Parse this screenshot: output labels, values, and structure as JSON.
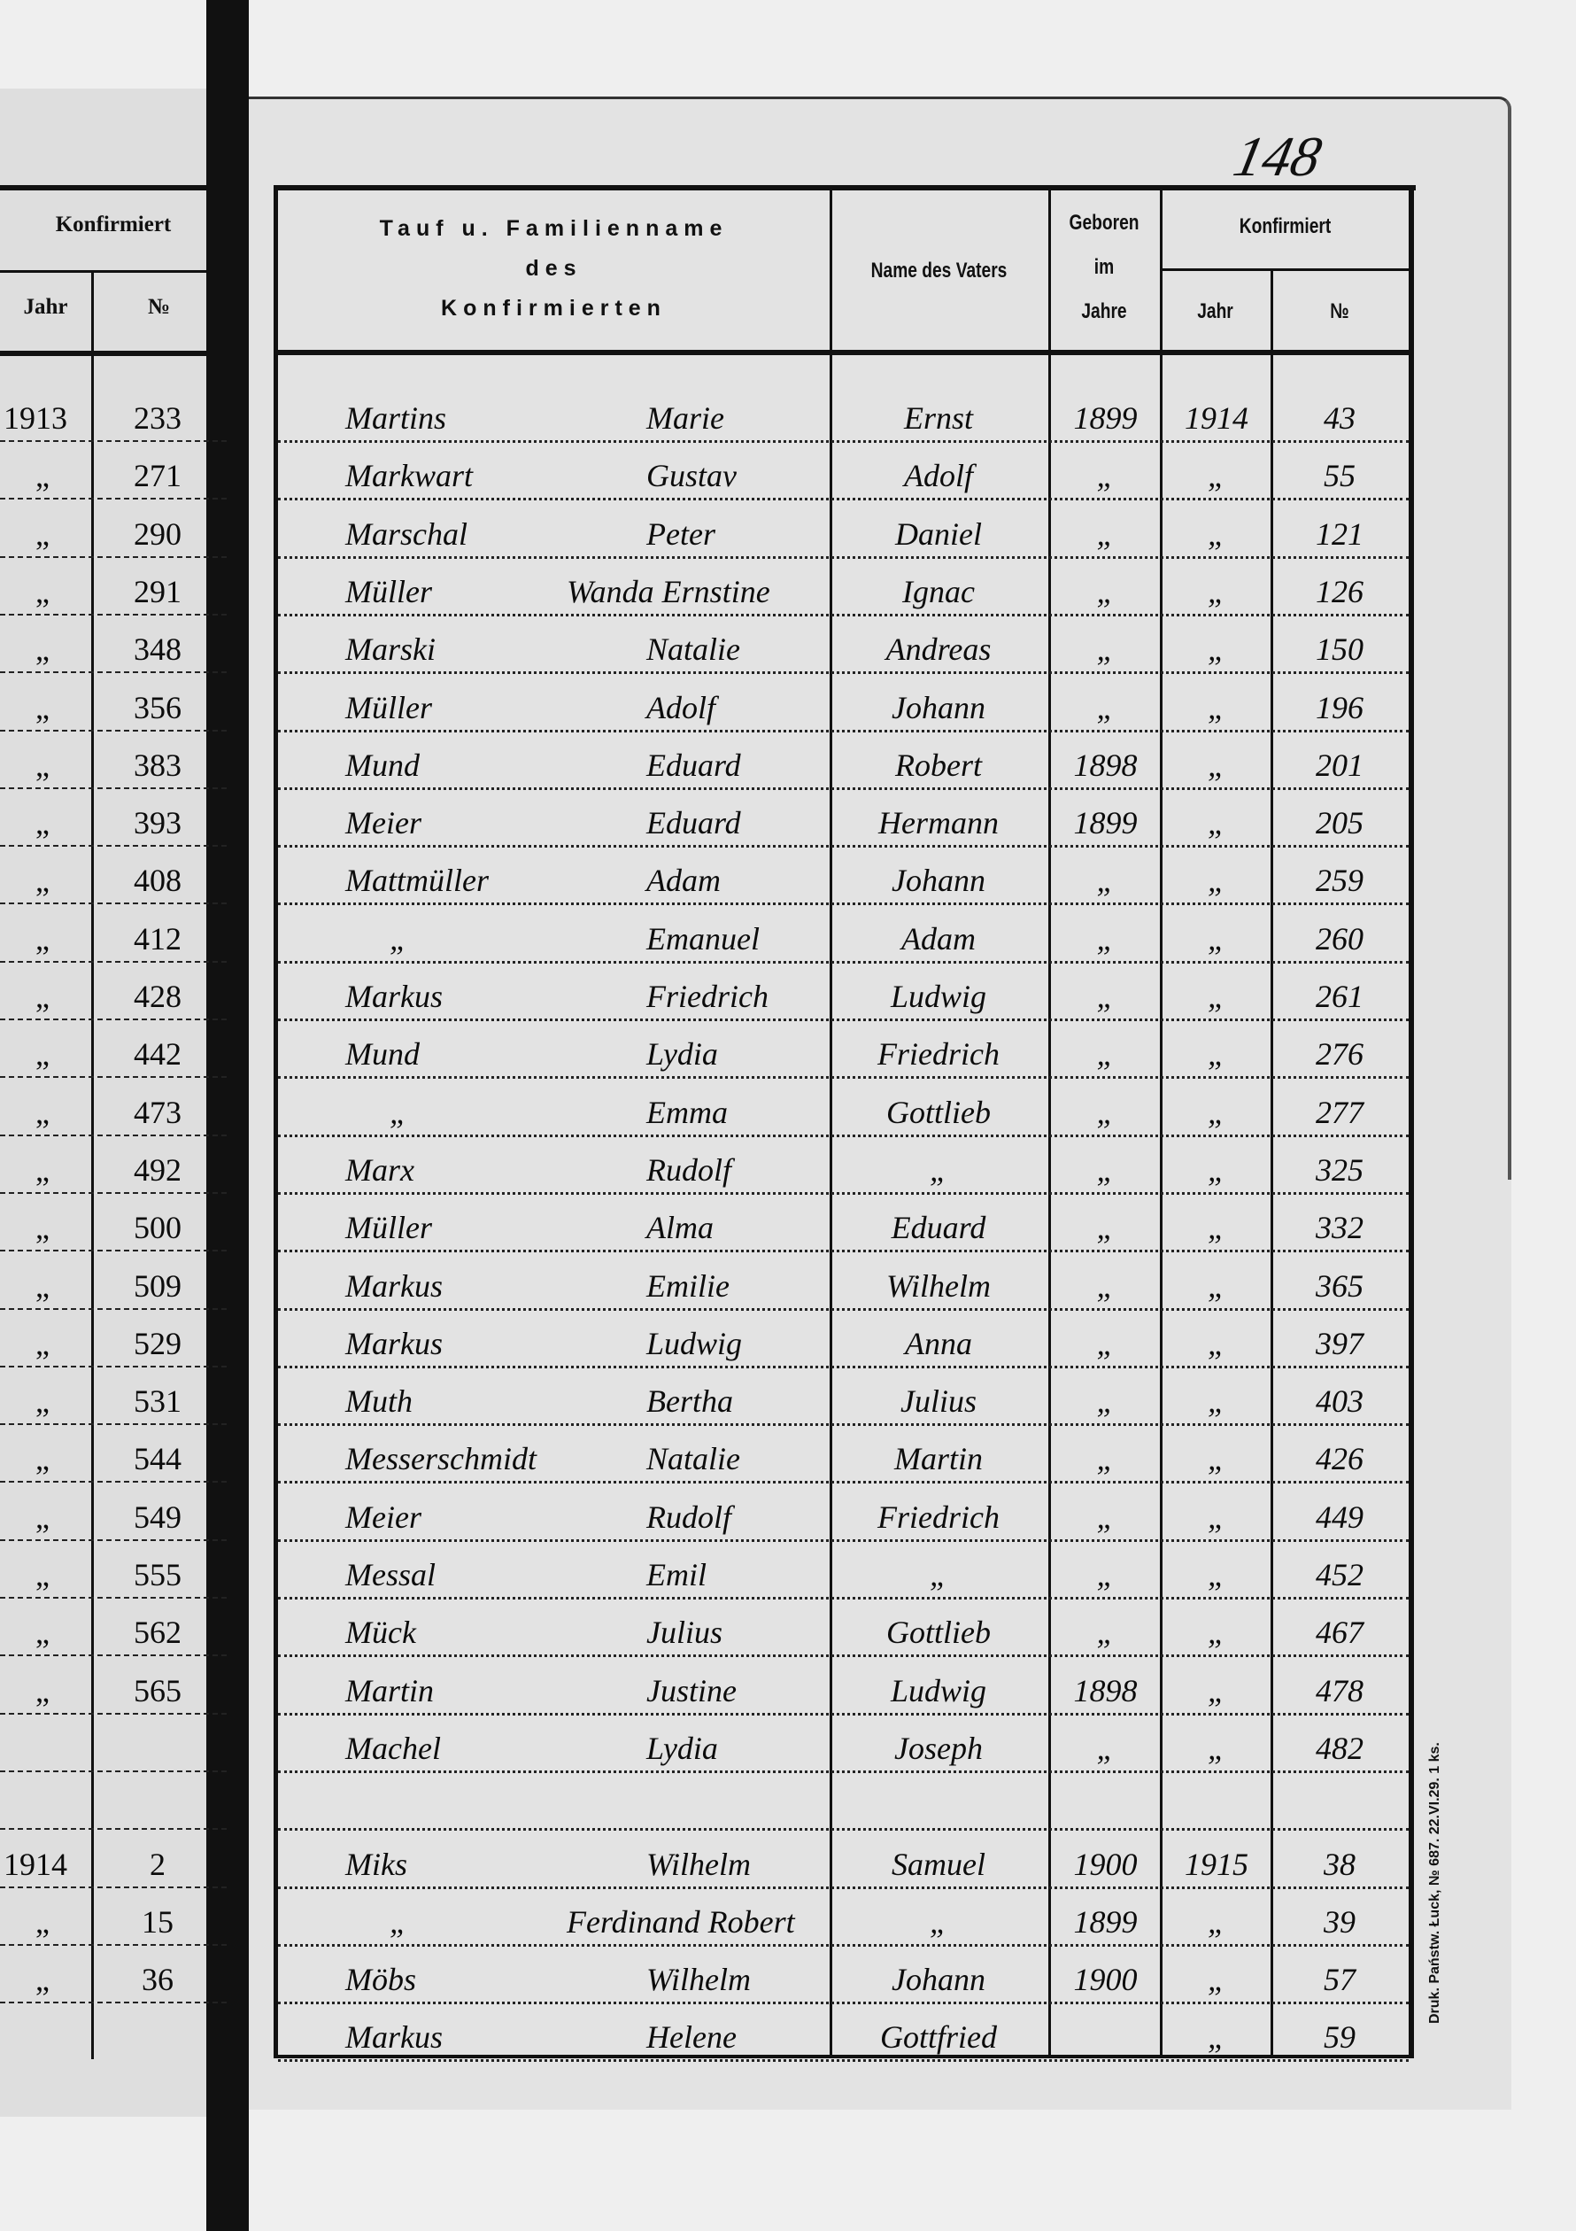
{
  "page_number": "148",
  "imprint": "Druk. Państw. Łuck, № 687. 22.VI.29. 1 ks.",
  "left_page": {
    "header": {
      "group": "Konfirmiert",
      "year": "Jahr",
      "number": "№"
    },
    "rows": [
      [
        "1913",
        "233"
      ],
      [
        "„",
        "271"
      ],
      [
        "„",
        "290"
      ],
      [
        "„",
        "291"
      ],
      [
        "„",
        "348"
      ],
      [
        "„",
        "356"
      ],
      [
        "„",
        "383"
      ],
      [
        "„",
        "393"
      ],
      [
        "„",
        "408"
      ],
      [
        "„",
        "412"
      ],
      [
        "„",
        "428"
      ],
      [
        "„",
        "442"
      ],
      [
        "„",
        "473"
      ],
      [
        "„",
        "492"
      ],
      [
        "„",
        "500"
      ],
      [
        "„",
        "509"
      ],
      [
        "„",
        "529"
      ],
      [
        "„",
        "531"
      ],
      [
        "„",
        "544"
      ],
      [
        "„",
        "549"
      ],
      [
        "„",
        "555"
      ],
      [
        "„",
        "562"
      ],
      [
        "„",
        "565"
      ],
      [
        "",
        ""
      ],
      [
        "",
        ""
      ],
      [
        "1914",
        "2"
      ],
      [
        "„",
        "15"
      ],
      [
        "„",
        "36"
      ]
    ]
  },
  "header": {
    "name_line1": "Tauf u. Familienname",
    "name_line2": "des",
    "name_line3": "Konfirmierten",
    "father": "Name des Vaters",
    "born_line1": "Geboren",
    "born_line2": "im",
    "born_line3": "Jahre",
    "confirmed": "Konfirmiert",
    "confirmed_year": "Jahr",
    "confirmed_number": "№"
  },
  "rows": [
    {
      "surname": "Martins",
      "first": "Marie",
      "father": "Ernst",
      "born": "1899",
      "year": "1914",
      "no": "43"
    },
    {
      "surname": "Markwart",
      "first": "Gustav",
      "father": "Adolf",
      "born": "„",
      "year": "„",
      "no": "55"
    },
    {
      "surname": "Marschal",
      "first": "Peter",
      "father": "Daniel",
      "born": "„",
      "year": "„",
      "no": "121"
    },
    {
      "surname": "Müller",
      "first": "Wanda Ernstine",
      "father": "Ignac",
      "born": "„",
      "year": "„",
      "no": "126"
    },
    {
      "surname": "Marski",
      "first": "Natalie",
      "father": "Andreas",
      "born": "„",
      "year": "„",
      "no": "150"
    },
    {
      "surname": "Müller",
      "first": "Adolf",
      "father": "Johann",
      "born": "„",
      "year": "„",
      "no": "196"
    },
    {
      "surname": "Mund",
      "first": "Eduard",
      "father": "Robert",
      "born": "1898",
      "year": "„",
      "no": "201"
    },
    {
      "surname": "Meier",
      "first": "Eduard",
      "father": "Hermann",
      "born": "1899",
      "year": "„",
      "no": "205"
    },
    {
      "surname": "Mattmüller",
      "first": "Adam",
      "father": "Johann",
      "born": "„",
      "year": "„",
      "no": "259"
    },
    {
      "surname": "„",
      "first": "Emanuel",
      "father": "Adam",
      "born": "„",
      "year": "„",
      "no": "260"
    },
    {
      "surname": "Markus",
      "first": "Friedrich",
      "father": "Ludwig",
      "born": "„",
      "year": "„",
      "no": "261"
    },
    {
      "surname": "Mund",
      "first": "Lydia",
      "father": "Friedrich",
      "born": "„",
      "year": "„",
      "no": "276"
    },
    {
      "surname": "„",
      "first": "Emma",
      "father": "Gottlieb",
      "born": "„",
      "year": "„",
      "no": "277"
    },
    {
      "surname": "Marx",
      "first": "Rudolf",
      "father": "„",
      "born": "„",
      "year": "„",
      "no": "325"
    },
    {
      "surname": "Müller",
      "first": "Alma",
      "father": "Eduard",
      "born": "„",
      "year": "„",
      "no": "332"
    },
    {
      "surname": "Markus",
      "first": "Emilie",
      "father": "Wilhelm",
      "born": "„",
      "year": "„",
      "no": "365"
    },
    {
      "surname": "Markus",
      "first": "Ludwig",
      "father": "Anna",
      "born": "„",
      "year": "„",
      "no": "397"
    },
    {
      "surname": "Muth",
      "first": "Bertha",
      "father": "Julius",
      "born": "„",
      "year": "„",
      "no": "403"
    },
    {
      "surname": "Messerschmidt",
      "first": "Natalie",
      "father": "Martin",
      "born": "„",
      "year": "„",
      "no": "426"
    },
    {
      "surname": "Meier",
      "first": "Rudolf",
      "father": "Friedrich",
      "born": "„",
      "year": "„",
      "no": "449"
    },
    {
      "surname": "Messal",
      "first": "Emil",
      "father": "„",
      "born": "„",
      "year": "„",
      "no": "452"
    },
    {
      "surname": "Mück",
      "first": "Julius",
      "father": "Gottlieb",
      "born": "„",
      "year": "„",
      "no": "467"
    },
    {
      "surname": "Martin",
      "first": "Justine",
      "father": "Ludwig",
      "born": "1898",
      "year": "„",
      "no": "478"
    },
    {
      "surname": "Machel",
      "first": "Lydia",
      "father": "Joseph",
      "born": "„",
      "year": "„",
      "no": "482"
    },
    {
      "surname": "",
      "first": "",
      "father": "",
      "born": "",
      "year": "",
      "no": ""
    },
    {
      "surname": "Miks",
      "first": "Wilhelm",
      "father": "Samuel",
      "born": "1900",
      "year": "1915",
      "no": "38"
    },
    {
      "surname": "„",
      "first": "Ferdinand Robert",
      "father": "„",
      "born": "1899",
      "year": "„",
      "no": "39"
    },
    {
      "surname": "Möbs",
      "first": "Wilhelm",
      "father": "Johann",
      "born": "1900",
      "year": "„",
      "no": "57"
    },
    {
      "surname": "Markus",
      "first": "Helene",
      "father": "Gottfried",
      "born": "",
      "year": "„",
      "no": "59"
    }
  ]
}
